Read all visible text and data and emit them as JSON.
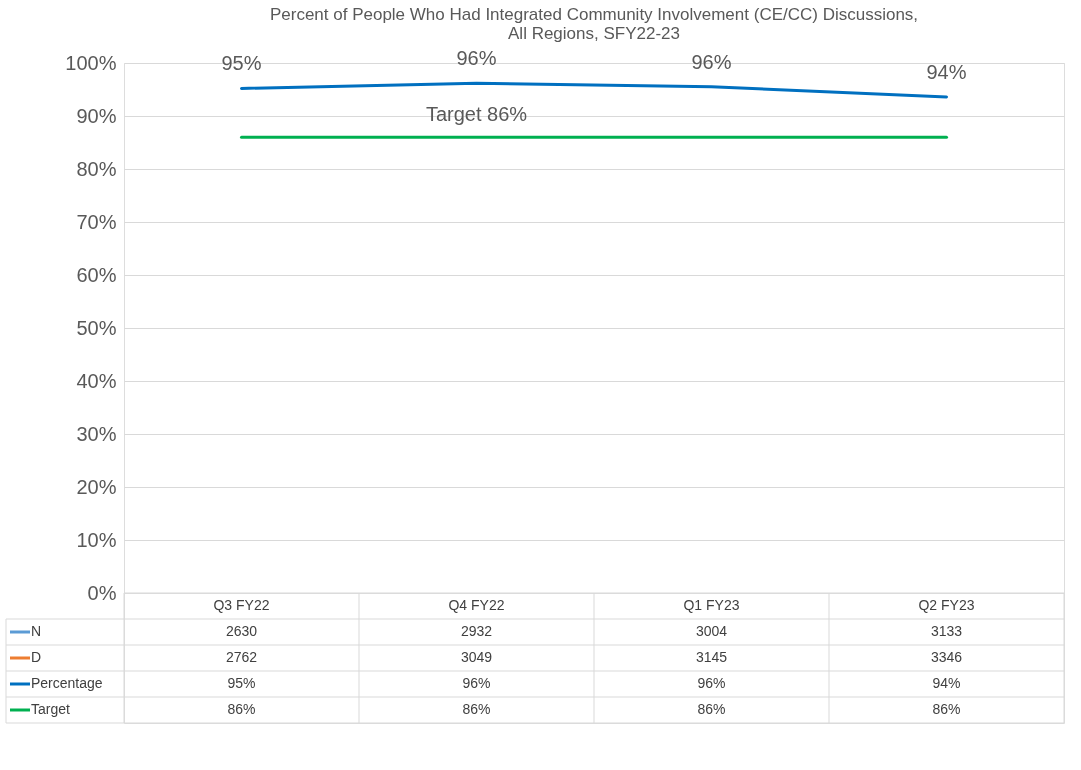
{
  "chart_data": {
    "type": "line",
    "title": [
      "Percent of People Who Had Integrated Community Involvement (CE/CC) Discussions,",
      "All Regions, SFY22-23"
    ],
    "categories": [
      "Q3 FY22",
      "Q4 FY22",
      "Q1 FY23",
      "Q2 FY23"
    ],
    "series": [
      {
        "name": "N",
        "color": "#5b9bd5",
        "values": [
          null,
          null,
          null,
          null
        ],
        "value_labels": [
          "2630",
          "2932",
          "3004",
          "3133"
        ]
      },
      {
        "name": "D",
        "color": "#ed7d31",
        "values": [
          null,
          null,
          null,
          null
        ],
        "value_labels": [
          "2762",
          "3049",
          "3145",
          "3346"
        ]
      },
      {
        "name": "Percentage",
        "color": "#0070c0",
        "values": [
          95.2,
          96.2,
          95.5,
          93.6
        ],
        "value_labels": [
          "95%",
          "96%",
          "96%",
          "94%"
        ]
      },
      {
        "name": "Target",
        "color": "#00b050",
        "values": [
          86,
          86,
          86,
          86
        ],
        "value_labels": [
          "86%",
          "86%",
          "86%",
          "86%"
        ]
      }
    ],
    "annotations": [
      {
        "text": "Target 86%",
        "x": "Q4 FY22",
        "y": 86
      }
    ],
    "ylim": [
      0,
      100
    ],
    "yticks": [
      {
        "value": 0,
        "label": "0%"
      },
      {
        "value": 10,
        "label": "10%"
      },
      {
        "value": 20,
        "label": "20%"
      },
      {
        "value": 30,
        "label": "30%"
      },
      {
        "value": 40,
        "label": "40%"
      },
      {
        "value": 50,
        "label": "50%"
      },
      {
        "value": 60,
        "label": "60%"
      },
      {
        "value": 70,
        "label": "70%"
      },
      {
        "value": 80,
        "label": "80%"
      },
      {
        "value": 90,
        "label": "90%"
      },
      {
        "value": 100,
        "label": "100%"
      }
    ],
    "grid": "y",
    "legend": "bottom left",
    "tick_labels": "y",
    "marker": "none",
    "line_style": "solid"
  }
}
